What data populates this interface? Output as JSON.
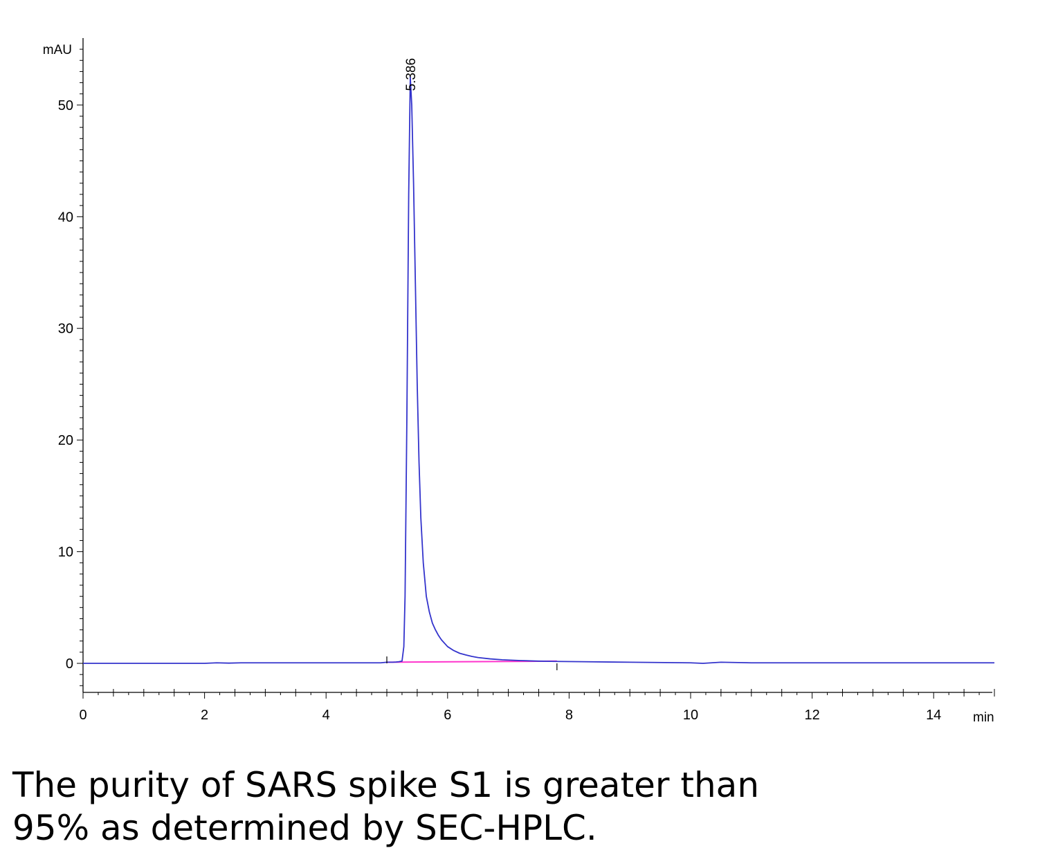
{
  "chart_data": {
    "type": "line",
    "title": "",
    "xlabel": "min",
    "ylabel": "mAU",
    "xlim": [
      0,
      15
    ],
    "ylim": [
      -2.6,
      56
    ],
    "x_ticks_major": [
      0,
      2,
      4,
      6,
      8,
      10,
      12,
      14
    ],
    "x_tick_labels": [
      "0",
      "2",
      "4",
      "6",
      "8",
      "10",
      "12",
      "14"
    ],
    "y_ticks_major": [
      0,
      10,
      20,
      30,
      40,
      50
    ],
    "y_tick_labels": [
      "0",
      "10",
      "20",
      "30",
      "40",
      "50"
    ],
    "grid": false,
    "legend": "none",
    "series": [
      {
        "color": "#3333cc",
        "x": [
          0,
          0.5,
          1,
          1.5,
          2,
          2.2,
          2.4,
          2.6,
          3,
          3.5,
          4,
          4.5,
          4.9,
          5.0,
          5.1,
          5.15,
          5.2,
          5.25,
          5.28,
          5.3,
          5.33,
          5.36,
          5.386,
          5.41,
          5.44,
          5.47,
          5.5,
          5.53,
          5.56,
          5.6,
          5.65,
          5.7,
          5.75,
          5.8,
          5.85,
          5.9,
          6.0,
          6.1,
          6.2,
          6.3,
          6.4,
          6.5,
          6.7,
          6.9,
          7.2,
          7.5,
          7.8,
          8.2,
          9,
          10,
          10.2,
          10.5,
          11,
          12,
          13,
          14,
          15
        ],
        "y": [
          0.0,
          0.0,
          0.0,
          0.0,
          0.0,
          0.05,
          0.02,
          0.05,
          0.05,
          0.05,
          0.05,
          0.05,
          0.05,
          0.1,
          0.1,
          0.12,
          0.15,
          0.2,
          1.5,
          6,
          22,
          42,
          52.5,
          50,
          43,
          34,
          25,
          18,
          13,
          9,
          6,
          4.6,
          3.6,
          3.0,
          2.5,
          2.1,
          1.5,
          1.15,
          0.9,
          0.75,
          0.62,
          0.52,
          0.4,
          0.32,
          0.25,
          0.2,
          0.17,
          0.15,
          0.1,
          0.05,
          0.0,
          0.1,
          0.05,
          0.05,
          0.05,
          0.05,
          0.05
        ]
      }
    ],
    "baseline": {
      "color": "#ff33cc",
      "x": [
        5.0,
        7.8
      ],
      "y": [
        0.1,
        0.2
      ]
    },
    "annotations": [
      {
        "text": "5.386",
        "x": 5.386,
        "y": 52.5
      }
    ],
    "integration_marks_x": [
      5.0,
      7.8
    ]
  },
  "caption": {
    "line1": "The purity of SARS spike S1 is greater than",
    "line2": "95% as determined by SEC-HPLC."
  }
}
